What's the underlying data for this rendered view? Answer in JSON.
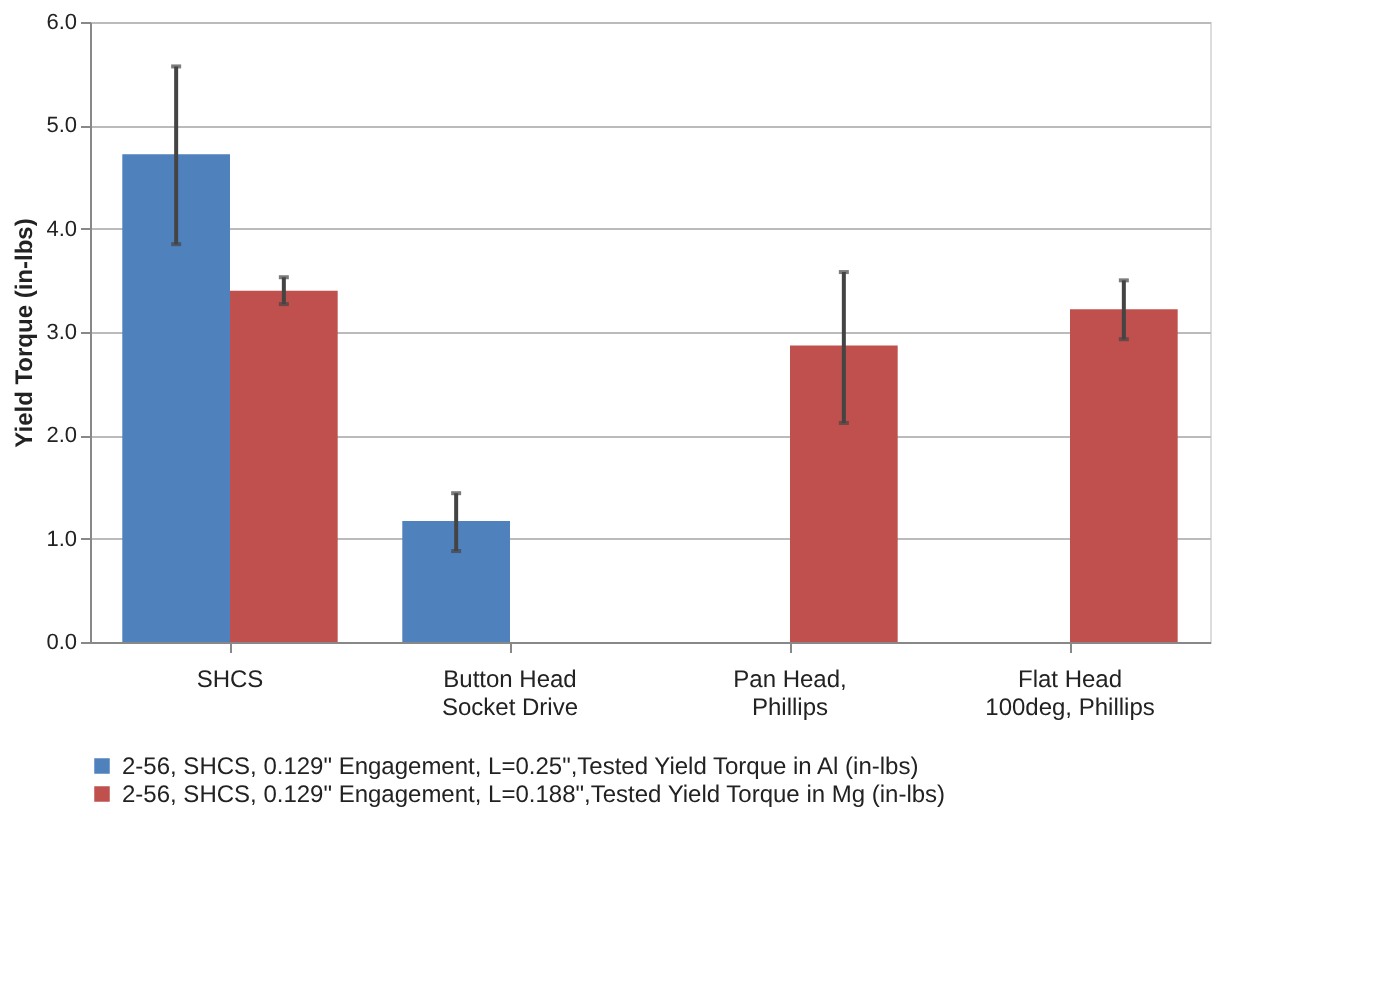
{
  "chart_data": {
    "type": "bar",
    "ylabel": "Yield Torque (in-lbs)",
    "categories": [
      "SHCS",
      "Button Head\nSocket Drive",
      "Pan Head,\nPhillips",
      "Flat Head\n100deg, Phillips"
    ],
    "series": [
      {
        "name": "2-56, SHCS, 0.129\" Engagement, L=0.25\",Tested Yield Torque in Al (in-lbs)",
        "color": "#4f81bd",
        "values": [
          4.72,
          1.17,
          null,
          null
        ],
        "errors": [
          [
            3.85,
            5.57
          ],
          [
            0.88,
            1.44
          ],
          null,
          null
        ]
      },
      {
        "name": "2-56, SHCS, 0.129\" Engagement, L=0.188\",Tested Yield Torque in Mg (in-lbs)",
        "color": "#c0504d",
        "values": [
          3.4,
          null,
          2.87,
          3.22
        ],
        "errors": [
          [
            3.27,
            3.53
          ],
          null,
          [
            2.12,
            3.58
          ],
          [
            2.93,
            3.5
          ]
        ]
      }
    ],
    "ylim": [
      0,
      6
    ],
    "yticks": [
      {
        "value": 0,
        "label": "0.0"
      },
      {
        "value": 1,
        "label": "1.0"
      },
      {
        "value": 2,
        "label": "2.0"
      },
      {
        "value": 3,
        "label": "3.0"
      },
      {
        "value": 4,
        "label": "4.0"
      },
      {
        "value": 5,
        "label": "5.0"
      },
      {
        "value": 6,
        "label": "6.0"
      }
    ],
    "grid": "y",
    "legend": "bottom"
  }
}
